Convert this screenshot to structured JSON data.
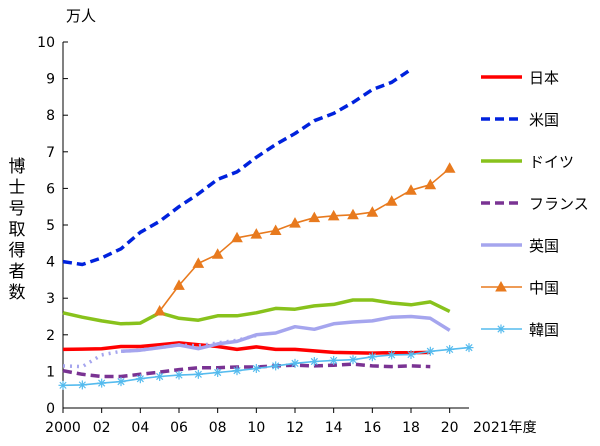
{
  "chart_data": {
    "type": "line",
    "unit": "万人",
    "ylabel": "博士号取得者数",
    "x_suffix": "年度",
    "ylim": [
      0,
      10
    ],
    "y_ticks": [
      0,
      1,
      2,
      3,
      4,
      5,
      6,
      7,
      8,
      9,
      10
    ],
    "xlim": [
      2000,
      2021
    ],
    "x_tick_labels": [
      {
        "x": 2000,
        "label": "2000"
      },
      {
        "x": 2002,
        "label": "02"
      },
      {
        "x": 2004,
        "label": "04"
      },
      {
        "x": 2006,
        "label": "06"
      },
      {
        "x": 2008,
        "label": "08"
      },
      {
        "x": 2010,
        "label": "10"
      },
      {
        "x": 2012,
        "label": "12"
      },
      {
        "x": 2014,
        "label": "14"
      },
      {
        "x": 2016,
        "label": "16"
      },
      {
        "x": 2018,
        "label": "18"
      },
      {
        "x": 2020,
        "label": "20"
      },
      {
        "x": 2021,
        "label": "2021"
      }
    ],
    "series": [
      {
        "name": "日本",
        "color": "#ff0000",
        "style": "solid",
        "marker": "none",
        "points": [
          [
            2000,
            1.6
          ],
          [
            2001,
            1.61
          ],
          [
            2002,
            1.62
          ],
          [
            2003,
            1.68
          ],
          [
            2004,
            1.68
          ],
          [
            2005,
            1.73
          ],
          [
            2006,
            1.78
          ],
          [
            2007,
            1.73
          ],
          [
            2008,
            1.68
          ],
          [
            2009,
            1.6
          ],
          [
            2010,
            1.67
          ],
          [
            2011,
            1.6
          ],
          [
            2012,
            1.6
          ],
          [
            2013,
            1.56
          ],
          [
            2014,
            1.52
          ],
          [
            2015,
            1.51
          ],
          [
            2016,
            1.5
          ],
          [
            2017,
            1.51
          ],
          [
            2018,
            1.51
          ],
          [
            2019,
            1.52
          ]
        ]
      },
      {
        "name": "米国",
        "color": "#0022dd",
        "style": "dashed",
        "marker": "none",
        "points": [
          [
            2000,
            4.0
          ],
          [
            2001,
            3.92
          ],
          [
            2002,
            4.1
          ],
          [
            2003,
            4.35
          ],
          [
            2004,
            4.8
          ],
          [
            2005,
            5.1
          ],
          [
            2006,
            5.5
          ],
          [
            2007,
            5.85
          ],
          [
            2008,
            6.25
          ],
          [
            2009,
            6.45
          ],
          [
            2010,
            6.85
          ],
          [
            2011,
            7.2
          ],
          [
            2012,
            7.5
          ],
          [
            2013,
            7.85
          ],
          [
            2014,
            8.05
          ],
          [
            2015,
            8.35
          ],
          [
            2016,
            8.7
          ],
          [
            2017,
            8.9
          ],
          [
            2018,
            9.25
          ]
        ]
      },
      {
        "name": "ドイツ",
        "color": "#88c21c",
        "style": "solid",
        "marker": "none",
        "points": [
          [
            2000,
            2.6
          ],
          [
            2001,
            2.48
          ],
          [
            2002,
            2.38
          ],
          [
            2003,
            2.3
          ],
          [
            2004,
            2.32
          ],
          [
            2005,
            2.6
          ],
          [
            2006,
            2.45
          ],
          [
            2007,
            2.4
          ],
          [
            2008,
            2.52
          ],
          [
            2009,
            2.52
          ],
          [
            2010,
            2.6
          ],
          [
            2011,
            2.72
          ],
          [
            2012,
            2.7
          ],
          [
            2013,
            2.79
          ],
          [
            2014,
            2.83
          ],
          [
            2015,
            2.95
          ],
          [
            2016,
            2.95
          ],
          [
            2017,
            2.87
          ],
          [
            2018,
            2.82
          ],
          [
            2019,
            2.9
          ],
          [
            2020,
            2.64
          ]
        ]
      },
      {
        "name": "フランス",
        "color": "#7a3393",
        "style": "dashed",
        "marker": "none",
        "points": [
          [
            2000,
            1.02
          ],
          [
            2001,
            0.92
          ],
          [
            2002,
            0.86
          ],
          [
            2003,
            0.86
          ],
          [
            2004,
            0.92
          ],
          [
            2005,
            0.98
          ],
          [
            2006,
            1.05
          ],
          [
            2007,
            1.1
          ],
          [
            2008,
            1.1
          ],
          [
            2009,
            1.12
          ],
          [
            2010,
            1.12
          ],
          [
            2011,
            1.15
          ],
          [
            2012,
            1.17
          ],
          [
            2013,
            1.15
          ],
          [
            2014,
            1.17
          ],
          [
            2015,
            1.2
          ],
          [
            2016,
            1.15
          ],
          [
            2017,
            1.13
          ],
          [
            2018,
            1.15
          ],
          [
            2019,
            1.13
          ]
        ]
      },
      {
        "name": "英国",
        "color": "#a5a5ee",
        "style": "solid",
        "marker": "none",
        "dotted_points": [
          [
            2000,
            1.15
          ],
          [
            2001,
            1.13
          ],
          [
            2002,
            1.45
          ],
          [
            2003,
            1.55
          ],
          [
            2004,
            1.58
          ],
          [
            2005,
            1.65
          ],
          [
            2006,
            1.72
          ],
          [
            2007,
            1.7
          ],
          [
            2008,
            1.78
          ],
          [
            2009,
            1.85
          ],
          [
            2010,
            1.98
          ]
        ],
        "points": [
          [
            2003,
            1.55
          ],
          [
            2004,
            1.58
          ],
          [
            2005,
            1.65
          ],
          [
            2006,
            1.72
          ],
          [
            2007,
            1.62
          ],
          [
            2008,
            1.75
          ],
          [
            2009,
            1.82
          ],
          [
            2010,
            2.0
          ],
          [
            2011,
            2.05
          ],
          [
            2012,
            2.22
          ],
          [
            2013,
            2.15
          ],
          [
            2014,
            2.3
          ],
          [
            2015,
            2.35
          ],
          [
            2016,
            2.38
          ],
          [
            2017,
            2.48
          ],
          [
            2018,
            2.5
          ],
          [
            2019,
            2.45
          ],
          [
            2020,
            2.12
          ]
        ]
      },
      {
        "name": "中国",
        "color": "#e87a1e",
        "style": "solid",
        "marker": "triangle",
        "points": [
          [
            2005,
            2.65
          ],
          [
            2006,
            3.35
          ],
          [
            2007,
            3.95
          ],
          [
            2008,
            4.2
          ],
          [
            2009,
            4.65
          ],
          [
            2010,
            4.75
          ],
          [
            2011,
            4.85
          ],
          [
            2012,
            5.05
          ],
          [
            2013,
            5.2
          ],
          [
            2014,
            5.25
          ],
          [
            2015,
            5.28
          ],
          [
            2016,
            5.35
          ],
          [
            2017,
            5.65
          ],
          [
            2018,
            5.95
          ],
          [
            2019,
            6.1
          ],
          [
            2020,
            6.55
          ]
        ]
      },
      {
        "name": "韓国",
        "color": "#55bbee",
        "style": "solid",
        "marker": "star",
        "points": [
          [
            2000,
            0.62
          ],
          [
            2001,
            0.63
          ],
          [
            2002,
            0.68
          ],
          [
            2003,
            0.72
          ],
          [
            2004,
            0.8
          ],
          [
            2005,
            0.86
          ],
          [
            2006,
            0.9
          ],
          [
            2007,
            0.92
          ],
          [
            2008,
            0.97
          ],
          [
            2009,
            1.02
          ],
          [
            2010,
            1.08
          ],
          [
            2011,
            1.15
          ],
          [
            2012,
            1.22
          ],
          [
            2013,
            1.27
          ],
          [
            2014,
            1.3
          ],
          [
            2015,
            1.32
          ],
          [
            2016,
            1.4
          ],
          [
            2017,
            1.45
          ],
          [
            2018,
            1.46
          ],
          [
            2019,
            1.55
          ],
          [
            2020,
            1.6
          ],
          [
            2021,
            1.65
          ]
        ]
      }
    ]
  }
}
